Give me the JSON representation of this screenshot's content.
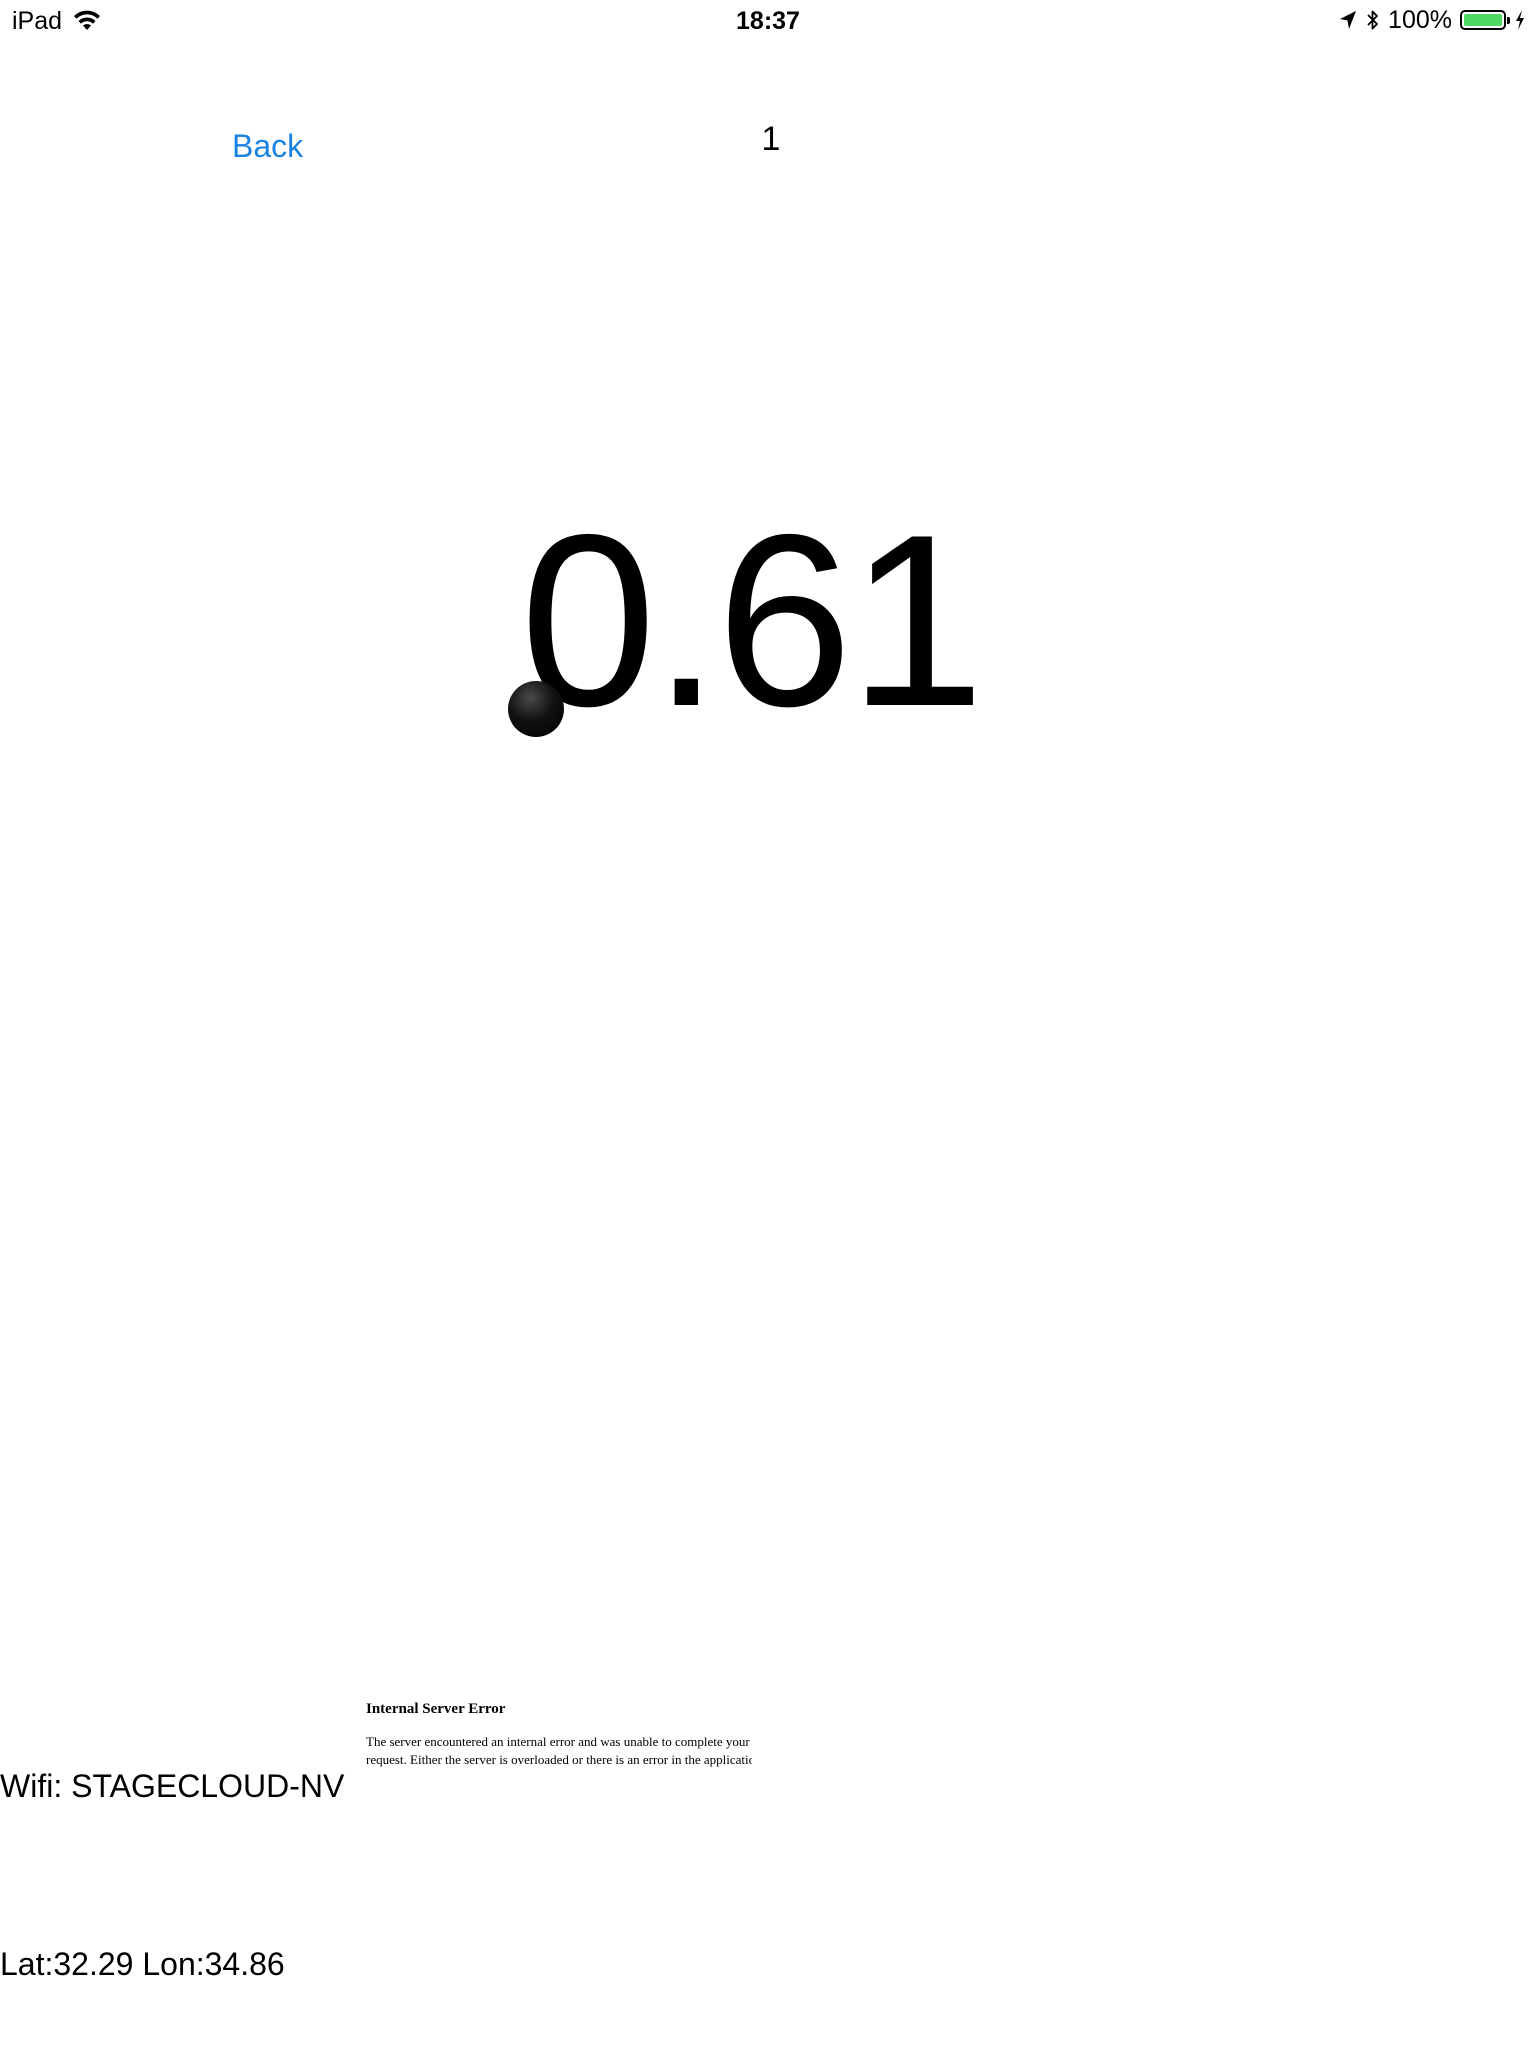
{
  "status_bar": {
    "device": "iPad",
    "time": "18:37",
    "battery_percent": "100%",
    "battery_level": 1.0,
    "battery_color": "#4cd964",
    "icons": [
      "wifi-icon",
      "location-arrow-icon",
      "bluetooth-icon",
      "battery-icon",
      "charging-bolt-icon"
    ]
  },
  "nav": {
    "back_label": "Back",
    "back_color": "#1a82e2",
    "page_counter": "1"
  },
  "reading": {
    "value": "0.61"
  },
  "error": {
    "title": "Internal Server Error",
    "body": "The server encountered an internal error and was unable to complete your request. Either the server is overloaded or there is an error in the application."
  },
  "info": {
    "wifi": "Wifi: STAGECLOUD-NV",
    "location": "Lat:32.29 Lon:34.86"
  }
}
